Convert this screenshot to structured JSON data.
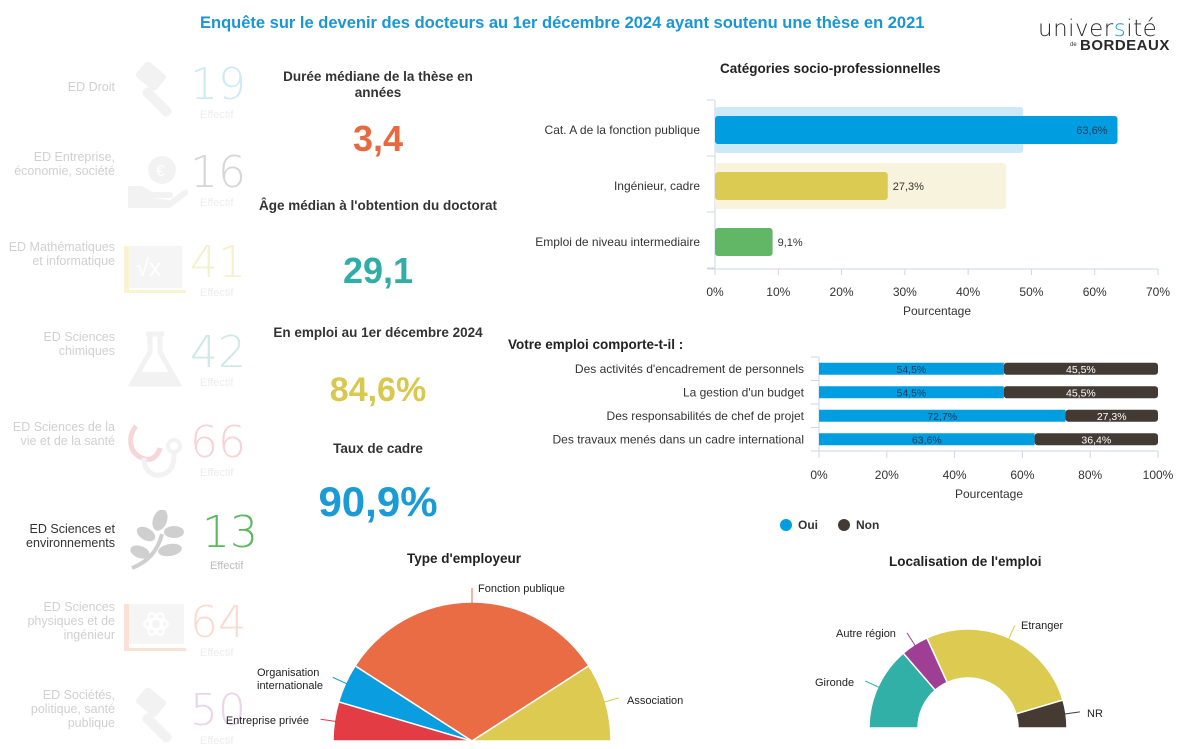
{
  "header": {
    "title": "Enquête sur le devenir des docteurs au 1er décembre 2024 ayant soutenu une thèse en 2021",
    "logo": {
      "line1_a": "univer",
      "line1_b": "s",
      "line1_c": "ité",
      "de": "de",
      "line2": "BORDEAUX"
    }
  },
  "sidebar": {
    "effectif_label": "Effectif",
    "items": [
      {
        "label": "ED Droit",
        "count": "19",
        "icon": "gavel-icon",
        "color": "#cfe9f7",
        "active": false
      },
      {
        "label": "ED Entreprise, économie, société",
        "count": "16",
        "icon": "hand-euro-icon",
        "color": "#d6d6d6",
        "active": false
      },
      {
        "label": "ED Mathématiques et informatique",
        "count": "41",
        "icon": "sqrt-board-icon",
        "color": "#f7f0cf",
        "active": false
      },
      {
        "label": "ED Sciences chimiques",
        "count": "42",
        "icon": "flask-icon",
        "color": "#cfe9e6",
        "active": false
      },
      {
        "label": "ED Sciences de la vie et de la santé",
        "count": "66",
        "icon": "stethoscope-icon",
        "color": "#f6d3d5",
        "active": false
      },
      {
        "label": "ED Sciences et environnements",
        "count": "13",
        "icon": "leaf-branch-icon",
        "color": "#5cb85c",
        "active": true
      },
      {
        "label": "ED Sciences physiques et de ingénieur",
        "count": "64",
        "icon": "atom-laptop-icon",
        "color": "#f9dccf",
        "active": false
      },
      {
        "label": "ED Sociétés, politique, santé publique",
        "count": "50",
        "icon": "gavel-icon",
        "color": "#ead6ea",
        "active": false
      }
    ]
  },
  "kpis": [
    {
      "label": "Durée médiane de la thèse en années",
      "value": "3,4",
      "color": "#e8693f"
    },
    {
      "label": "Âge médian à l'obtention du doctorat",
      "value": "29,1",
      "color": "#2fada6"
    },
    {
      "label": "En emploi au 1er décembre 2024",
      "value": "84,6%",
      "color": "#d9c84f"
    },
    {
      "label": "Taux de cadre",
      "value": "90,9%",
      "color": "#1a9bd7"
    }
  ],
  "chart_data": [
    {
      "type": "bar",
      "orientation": "horizontal",
      "title": "Catégories socio-professionnelles",
      "categories": [
        "Cat. A de la fonction publique",
        "Ingénieur, cadre",
        "Emploi de niveau intermediaire"
      ],
      "values": [
        63.6,
        27.3,
        9.1
      ],
      "value_labels": [
        "63,6%",
        "27,3%",
        "9,1%"
      ],
      "reference_values": [
        48.7,
        46.0,
        0
      ],
      "colors": [
        "#009de0",
        "#dbcb52",
        "#62b766"
      ],
      "reference_colors": [
        "#cde9f7",
        "#f8f3dc",
        "#e6f4e7"
      ],
      "xlabel": "Pourcentage",
      "xticks": [
        "0%",
        "10%",
        "20%",
        "30%",
        "40%",
        "50%",
        "60%",
        "70%"
      ],
      "xlim": [
        0,
        70
      ]
    },
    {
      "type": "bar",
      "orientation": "horizontal",
      "stacked": true,
      "title": "Votre emploi comporte-t-il :",
      "categories": [
        "Des activités d'encadrement de personnels",
        "La gestion d'un budget",
        "Des responsabilités de chef de projet",
        "Des travaux menés dans un cadre international"
      ],
      "series": [
        {
          "name": "Oui",
          "color": "#009de0",
          "values": [
            54.5,
            54.5,
            72.7,
            63.6
          ],
          "labels": [
            "54,5%",
            "54,5%",
            "72,7%",
            "63,6%"
          ]
        },
        {
          "name": "Non",
          "color": "#433a33",
          "values": [
            45.5,
            45.5,
            27.3,
            36.4
          ],
          "labels": [
            "45,5%",
            "45,5%",
            "27,3%",
            "36,4%"
          ]
        }
      ],
      "xlabel": "Pourcentage",
      "xticks": [
        "0%",
        "20%",
        "40%",
        "60%",
        "80%",
        "100%"
      ],
      "xlim": [
        0,
        100
      ],
      "legend": "bottom"
    },
    {
      "type": "pie",
      "variant": "semicircle",
      "title": "Type d'employeur",
      "slices": [
        {
          "label": "Entreprise privée",
          "value": 9.1,
          "color": "#e33c45"
        },
        {
          "label": "Organisation internationale",
          "value": 9.1,
          "color": "#0a9de0"
        },
        {
          "label": "Fonction publique",
          "value": 63.6,
          "color": "#ea6c45"
        },
        {
          "label": "Association",
          "value": 18.2,
          "color": "#dccb50"
        }
      ]
    },
    {
      "type": "pie",
      "variant": "semicircle-donut",
      "title": "Localisation de l'emploi",
      "slices": [
        {
          "label": "Gironde",
          "value": 27.3,
          "color": "#31b0a8"
        },
        {
          "label": "Autre région",
          "value": 9.1,
          "color": "#9e3f95"
        },
        {
          "label": "Etranger",
          "value": 54.5,
          "color": "#dccb50"
        },
        {
          "label": "NR",
          "value": 9.1,
          "color": "#463b33"
        }
      ]
    }
  ]
}
